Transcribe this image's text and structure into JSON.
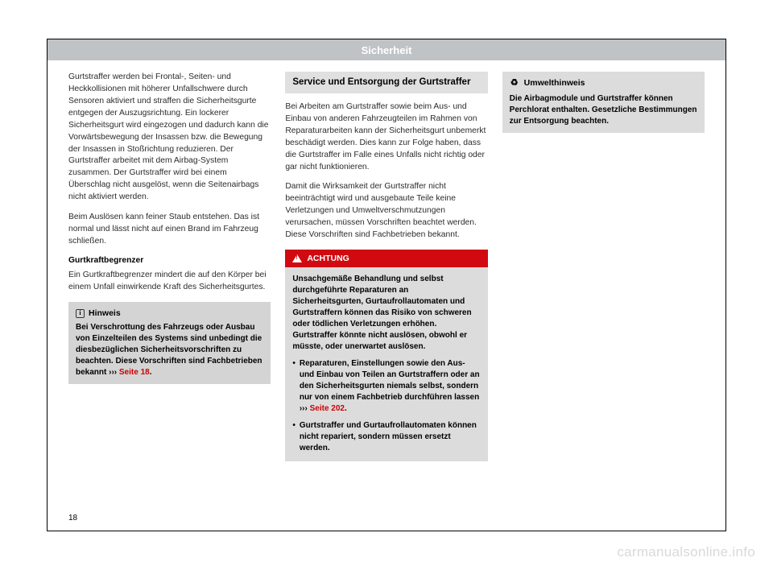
{
  "header": {
    "title": "Sicherheit"
  },
  "page_number": "18",
  "watermark": "carmanualsonline.info",
  "col1": {
    "p1": "Gurtstraffer werden bei Frontal-, Seiten- und Heckkollisionen mit höherer Unfallschwere durch Sensoren aktiviert und straffen die Sicherheitsgurte entgegen der Auszugsrichtung. Ein lockerer Sicherheitsgurt wird eingezogen und dadurch kann die Vorwärtsbewegung der Insassen bzw. die Bewegung der Insassen in Stoßrichtung reduzieren. Der Gurtstraffer arbeitet mit dem Airbag-System zusammen. Der Gurtstraffer wird bei einem Überschlag nicht ausgelöst, wenn die Seitenairbags nicht aktiviert werden.",
    "p2": "Beim Auslösen kann feiner Staub entstehen. Das ist normal und lässt nicht auf einen Brand im Fahrzeug schließen.",
    "sub1": "Gurtkraftbegrenzer",
    "p3": "Ein Gurtkraftbegrenzer mindert die auf den Körper bei einem Unfall einwirkende Kraft des Sicherheitsgurtes.",
    "hinweis_title": "Hinweis",
    "hinweis_body_a": "Bei Verschrottung des Fahrzeugs oder Ausbau von Einzelteilen des Systems sind unbedingt die diesbezüglichen Sicherheitsvorschriften zu beachten. Diese Vorschriften sind Fachbetrieben bekannt ››› ",
    "hinweis_link": "Seite 18",
    "hinweis_body_b": "."
  },
  "col2": {
    "section_title": "Service und Entsorgung der Gurtstraffer",
    "p1": "Bei Arbeiten am Gurtstraffer sowie beim Aus- und Einbau von anderen Fahrzeugteilen im Rahmen von Reparaturarbeiten kann der Sicherheitsgurt unbemerkt beschädigt werden. Dies kann zur Folge haben, dass die Gurtstraffer im Falle eines Unfalls nicht richtig oder gar nicht funktionieren.",
    "p2": "Damit die Wirksamkeit der Gurtstraffer nicht beeinträchtigt wird und ausgebaute Teile keine Verletzungen und Umweltverschmutzungen verursachen, müssen Vorschriften beachtet werden. Diese Vorschriften sind Fachbetrieben bekannt.",
    "achtung_title": "ACHTUNG",
    "achtung_p1": "Unsachgemäße Behandlung und selbst durchgeführte Reparaturen an Sicherheitsgurten, Gurtaufrollautomaten und Gurtstraffern können das Risiko von schweren oder tödlichen Verletzungen erhöhen. Gurtstraffer könnte nicht auslösen, obwohl er müsste, oder unerwartet auslösen.",
    "achtung_b1_a": "Reparaturen, Einstellungen sowie den Aus- und Einbau von Teilen an Gurtstraffern oder an den Sicherheitsgurten niemals selbst, sondern nur von einem Fachbetrieb durchführen lassen ››› ",
    "achtung_b1_link": "Seite 202",
    "achtung_b1_b": ".",
    "achtung_b2": "Gurtstraffer und Gurtaufrollautomaten können nicht repariert, sondern müssen ersetzt werden."
  },
  "col3": {
    "env_title": "Umwelthinweis",
    "env_body": "Die Airbagmodule und Gurtstraffer können Perchlorat enthalten. Gesetzliche Bestimmungen zur Entsorgung beachten."
  }
}
